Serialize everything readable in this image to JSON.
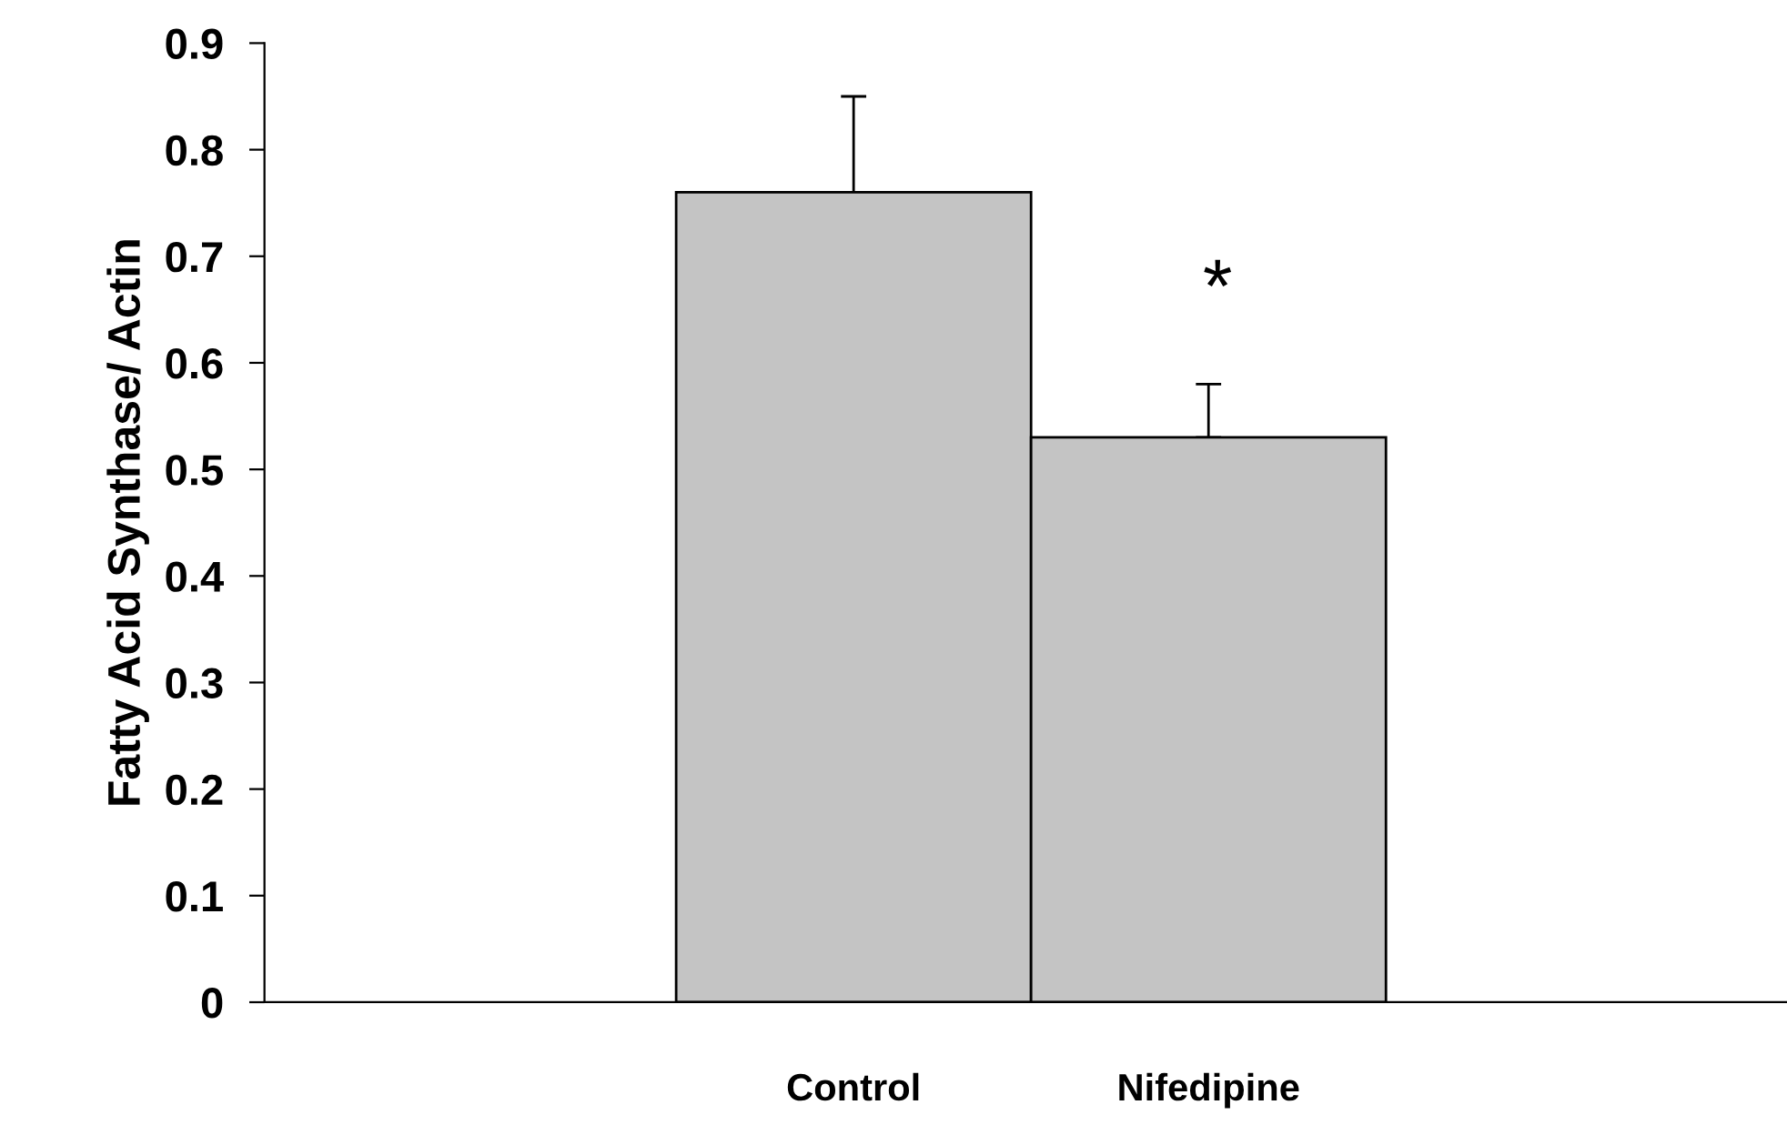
{
  "chart_data": {
    "type": "bar",
    "ylabel": "Fatty Acid Synthase/ Actin",
    "categories": [
      "Control",
      "Nifedipine"
    ],
    "values": [
      0.76,
      0.53
    ],
    "errors": [
      [
        0.76,
        0.85
      ],
      [
        0.53,
        0.58
      ]
    ],
    "color": "#c4c4c4",
    "ylim": [
      0,
      0.9
    ],
    "yticks": [
      0,
      0.1,
      0.2,
      0.3,
      0.4,
      0.5,
      0.6,
      0.7,
      0.8,
      0.9
    ],
    "annotations": [
      "*"
    ],
    "grid": false
  }
}
